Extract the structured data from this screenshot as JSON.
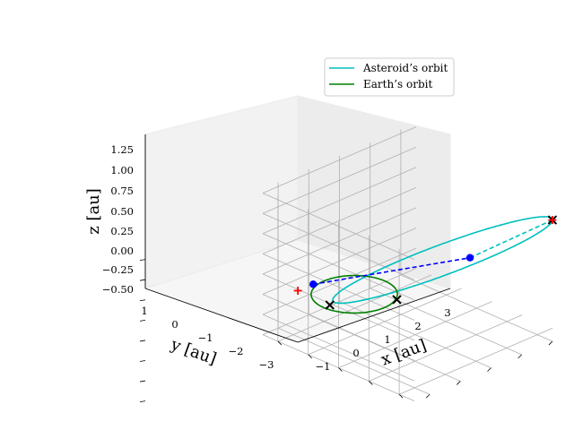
{
  "chart_data": {
    "type": "line3d",
    "title": "",
    "xlabel": "x [au]",
    "ylabel": "y [au]",
    "zlabel": "z [au]",
    "x_ticks": [
      "−1",
      "0",
      "1",
      "2",
      "3"
    ],
    "y_ticks": [
      "1",
      "0",
      "−1",
      "−2",
      "−3"
    ],
    "z_ticks": [
      "1.25",
      "1.00",
      "0.75",
      "0.50",
      "0.25",
      "0.00",
      "−0.25",
      "−0.50"
    ],
    "xlim": [
      -1.5,
      3.5
    ],
    "ylim": [
      -3.5,
      1.5
    ],
    "zlim": [
      -0.5,
      1.3
    ],
    "grid": true,
    "legend_position": "top-right",
    "legend": [
      {
        "label": "Asteroid’s orbit",
        "color": "#00bfbf"
      },
      {
        "label": "Earth’s orbit",
        "color": "#008000"
      }
    ],
    "series": [
      {
        "name": "Asteroid’s orbit",
        "color": "#00bfbf",
        "curve": "ellipse",
        "center": [
          1.25,
          -1.65,
          0.49
        ],
        "semi_axis_a": [
          1.75,
          -1.85,
          0.5
        ],
        "semi_axis_b": [
          0.95,
          0.75,
          -0.05
        ]
      },
      {
        "name": "Earth’s orbit",
        "color": "#008000",
        "curve": "circle",
        "center": [
          0,
          0,
          0
        ],
        "radius": 1
      }
    ],
    "line_segments": [
      {
        "role": "transfer-line",
        "color": "#0000ff",
        "style": "dashed",
        "from": [
          -0.45,
          0.9,
          0.05
        ],
        "to": [
          1.6,
          -2.2,
          0.55
        ]
      },
      {
        "role": "apsidal-line",
        "color": "#00bfbf",
        "style": "dashed",
        "from": [
          1.6,
          -2.2,
          0.55
        ],
        "to": [
          3.0,
          -3.5,
          1.0
        ]
      }
    ],
    "markers": [
      {
        "role": "x-marker",
        "symbol": "x",
        "color": "#000000",
        "pos": [
          -0.5,
          0.3,
          -0.1
        ]
      },
      {
        "role": "x-marker",
        "symbol": "x",
        "color": "#000000",
        "pos": [
          0.5,
          -0.9,
          0.0
        ]
      },
      {
        "role": "x-marker",
        "symbol": "x",
        "color": "#000000",
        "pos": [
          3.0,
          -3.5,
          1.0
        ]
      },
      {
        "role": "plus-marker",
        "symbol": "+",
        "color": "#ff0000",
        "pos": [
          3.0,
          -3.5,
          1.0
        ]
      },
      {
        "role": "plus-marker",
        "symbol": "+",
        "color": "#ff0000",
        "pos": [
          -0.85,
          1.0,
          0.02
        ]
      },
      {
        "role": "dot-marker",
        "symbol": "o",
        "color": "#0000ff",
        "pos": [
          -0.45,
          0.9,
          0.05
        ]
      },
      {
        "role": "dot-marker",
        "symbol": "o",
        "color": "#0000ff",
        "pos": [
          1.6,
          -2.2,
          0.55
        ]
      }
    ]
  }
}
